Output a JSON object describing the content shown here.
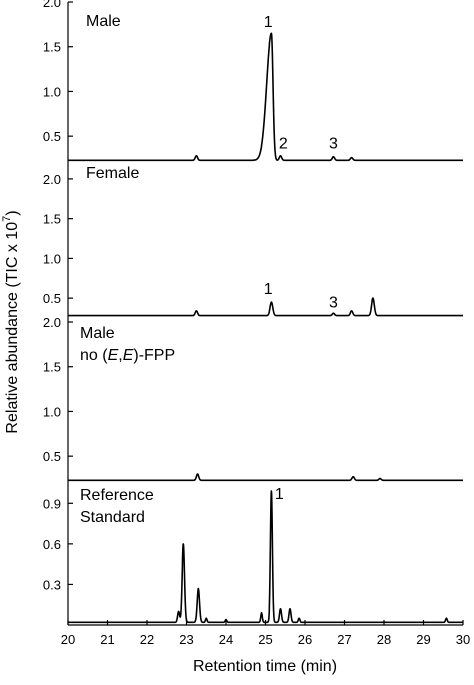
{
  "chart_data": {
    "type": "line",
    "xlabel": "Retention time (min)",
    "ylabel": "Relative abundance (TIC x 10",
    "ylabel_superscript": "7",
    "ylabel_close": ")",
    "xlim": [
      20,
      30
    ],
    "x_ticks": [
      20,
      21,
      22,
      23,
      24,
      25,
      26,
      27,
      28,
      29,
      30
    ],
    "x_tick_labels": [
      "20",
      "21",
      "22",
      "23",
      "24",
      "25",
      "26",
      "27",
      "28",
      "29",
      "30"
    ],
    "grid": false,
    "panels": [
      {
        "id": "male",
        "label_lines": [
          "Male"
        ],
        "ylim": [
          0.2,
          2.0
        ],
        "baseline": 0.23,
        "y_ticks": [
          0.5,
          1.0,
          1.5,
          2.0
        ],
        "y_tick_labels": [
          "0.5",
          "1.0",
          "1.5",
          "2.0"
        ],
        "peaks": [
          {
            "x": 23.25,
            "y": 0.28,
            "w": 0.03
          },
          {
            "x": 25.15,
            "y": 1.65,
            "w": 0.04,
            "tail": 0.12
          },
          {
            "x": 25.38,
            "y": 0.28,
            "w": 0.03
          },
          {
            "x": 26.72,
            "y": 0.27,
            "w": 0.03
          },
          {
            "x": 27.18,
            "y": 0.26,
            "w": 0.03
          }
        ],
        "peak_labels": [
          {
            "text": "1",
            "x": 25.07,
            "y": 1.72
          },
          {
            "text": "2",
            "x": 25.45,
            "y": 0.36
          },
          {
            "text": "3",
            "x": 26.72,
            "y": 0.36
          }
        ]
      },
      {
        "id": "female",
        "label_lines": [
          "Female"
        ],
        "ylim": [
          0.2,
          2.2
        ],
        "baseline": 0.28,
        "y_ticks": [
          0.5,
          1.0,
          1.5,
          2.0
        ],
        "y_tick_labels": [
          "0.5",
          "1.0",
          "1.5",
          "2.0"
        ],
        "peaks": [
          {
            "x": 23.25,
            "y": 0.34,
            "w": 0.03
          },
          {
            "x": 25.15,
            "y": 0.45,
            "w": 0.035
          },
          {
            "x": 26.72,
            "y": 0.31,
            "w": 0.03
          },
          {
            "x": 27.18,
            "y": 0.34,
            "w": 0.03
          },
          {
            "x": 27.72,
            "y": 0.5,
            "w": 0.035
          }
        ],
        "peak_labels": [
          {
            "text": "1",
            "x": 25.07,
            "y": 0.55
          },
          {
            "text": "3",
            "x": 26.72,
            "y": 0.38
          }
        ]
      },
      {
        "id": "male-no-fpp",
        "label_lines": [
          "Male",
          "no (E,E)-FPP"
        ],
        "ylim": [
          0.2,
          2.0
        ],
        "baseline": 0.23,
        "y_ticks": [
          0.5,
          1.0,
          1.5,
          2.0
        ],
        "y_tick_labels": [
          "0.5",
          "1.0",
          "1.5",
          "2.0"
        ],
        "peaks": [
          {
            "x": 23.28,
            "y": 0.3,
            "w": 0.03
          },
          {
            "x": 27.22,
            "y": 0.27,
            "w": 0.03
          },
          {
            "x": 27.9,
            "y": 0.25,
            "w": 0.03
          }
        ],
        "peak_labels": []
      },
      {
        "id": "reference",
        "label_lines": [
          "Reference",
          "Standard"
        ],
        "ylim": [
          0.0,
          1.05
        ],
        "baseline": 0.02,
        "y_ticks": [
          0.3,
          0.6,
          0.9
        ],
        "y_tick_labels": [
          "0.3",
          "0.6",
          "0.9"
        ],
        "peaks": [
          {
            "x": 22.8,
            "y": 0.1,
            "w": 0.025
          },
          {
            "x": 22.92,
            "y": 0.6,
            "w": 0.03
          },
          {
            "x": 23.3,
            "y": 0.27,
            "w": 0.03
          },
          {
            "x": 23.5,
            "y": 0.05,
            "w": 0.02
          },
          {
            "x": 24.0,
            "y": 0.04,
            "w": 0.02
          },
          {
            "x": 24.9,
            "y": 0.09,
            "w": 0.02
          },
          {
            "x": 25.15,
            "y": 0.99,
            "w": 0.025
          },
          {
            "x": 25.38,
            "y": 0.12,
            "w": 0.025
          },
          {
            "x": 25.62,
            "y": 0.12,
            "w": 0.025
          },
          {
            "x": 25.85,
            "y": 0.05,
            "w": 0.02
          },
          {
            "x": 29.58,
            "y": 0.05,
            "w": 0.02
          }
        ],
        "peak_labels": [
          {
            "text": "1",
            "x": 25.35,
            "y": 0.93
          }
        ]
      }
    ]
  }
}
